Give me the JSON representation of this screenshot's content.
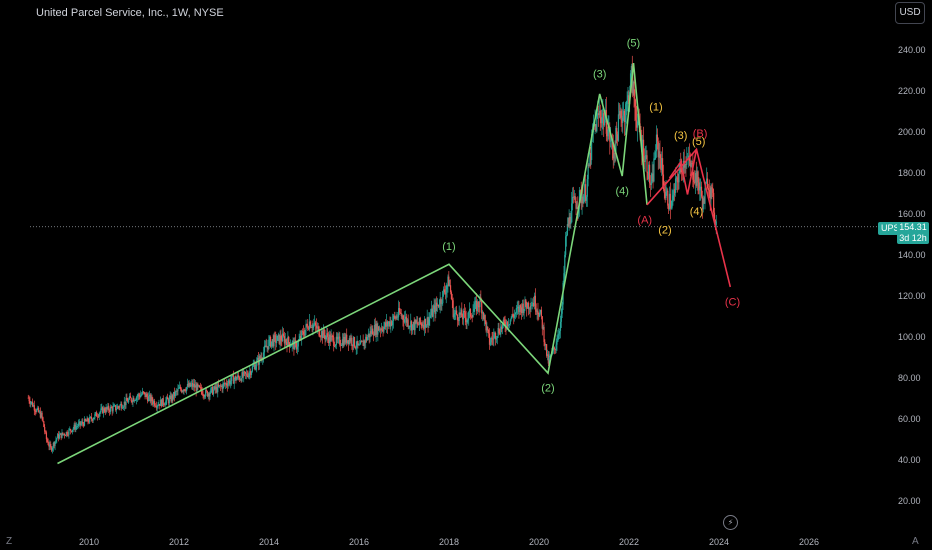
{
  "header": {
    "title": "United Parcel Service, Inc., 1W, NYSE",
    "currency_button": "USD"
  },
  "price_marker": {
    "ticker": "UPS",
    "price": "154.31",
    "countdown": "3d 12h"
  },
  "corner_labels": {
    "left": "Z",
    "right": "A"
  },
  "chart_data": {
    "type": "line",
    "title": "United Parcel Service, Inc., 1W, NYSE",
    "symbol": "UPS",
    "interval": "1W",
    "exchange": "NYSE",
    "ylim": [
      10,
      255
    ],
    "xlim": [
      2008.6,
      2027.8
    ],
    "y_ticks": [
      "20.00",
      "40.00",
      "60.00",
      "80.00",
      "100.00",
      "120.00",
      "140.00",
      "160.00",
      "180.00",
      "200.00",
      "220.00",
      "240.00"
    ],
    "y_tick_values": [
      20,
      40,
      60,
      80,
      100,
      120,
      140,
      160,
      180,
      200,
      220,
      240
    ],
    "x_ticks": [
      "2010",
      "2012",
      "2014",
      "2016",
      "2018",
      "2020",
      "2022",
      "2024",
      "2026"
    ],
    "x_tick_values": [
      2010,
      2012,
      2014,
      2016,
      2018,
      2020,
      2022,
      2024,
      2026
    ],
    "last_price": 154.31,
    "candles_series_name": "UPS",
    "price_path": [
      [
        2008.65,
        71
      ],
      [
        2008.8,
        66
      ],
      [
        2008.95,
        62
      ],
      [
        2009.05,
        51
      ],
      [
        2009.15,
        46
      ],
      [
        2009.3,
        52
      ],
      [
        2009.5,
        54
      ],
      [
        2009.7,
        57
      ],
      [
        2010.0,
        60
      ],
      [
        2010.3,
        65
      ],
      [
        2010.6,
        66
      ],
      [
        2010.9,
        70
      ],
      [
        2011.2,
        73
      ],
      [
        2011.5,
        68
      ],
      [
        2011.8,
        70
      ],
      [
        2012.0,
        75
      ],
      [
        2012.3,
        77
      ],
      [
        2012.6,
        73
      ],
      [
        2012.9,
        76
      ],
      [
        2013.2,
        80
      ],
      [
        2013.5,
        82
      ],
      [
        2013.8,
        90
      ],
      [
        2014.0,
        98
      ],
      [
        2014.3,
        100
      ],
      [
        2014.6,
        96
      ],
      [
        2014.9,
        108
      ],
      [
        2015.2,
        102
      ],
      [
        2015.5,
        98
      ],
      [
        2015.8,
        100
      ],
      [
        2016.0,
        95
      ],
      [
        2016.3,
        104
      ],
      [
        2016.6,
        106
      ],
      [
        2016.9,
        112
      ],
      [
        2017.2,
        106
      ],
      [
        2017.5,
        108
      ],
      [
        2017.8,
        118
      ],
      [
        2018.0,
        128
      ],
      [
        2018.1,
        112
      ],
      [
        2018.4,
        110
      ],
      [
        2018.7,
        118
      ],
      [
        2018.9,
        98
      ],
      [
        2019.1,
        104
      ],
      [
        2019.3,
        108
      ],
      [
        2019.6,
        115
      ],
      [
        2019.9,
        118
      ],
      [
        2020.05,
        110
      ],
      [
        2020.2,
        88
      ],
      [
        2020.35,
        95
      ],
      [
        2020.5,
        110
      ],
      [
        2020.6,
        150
      ],
      [
        2020.75,
        165
      ],
      [
        2020.9,
        168
      ],
      [
        2021.05,
        172
      ],
      [
        2021.2,
        200
      ],
      [
        2021.35,
        210
      ],
      [
        2021.5,
        205
      ],
      [
        2021.65,
        190
      ],
      [
        2021.8,
        208
      ],
      [
        2021.95,
        212
      ],
      [
        2022.05,
        228
      ],
      [
        2022.15,
        210
      ],
      [
        2022.25,
        198
      ],
      [
        2022.4,
        185
      ],
      [
        2022.5,
        172
      ],
      [
        2022.6,
        195
      ],
      [
        2022.7,
        188
      ],
      [
        2022.8,
        170
      ],
      [
        2022.95,
        165
      ],
      [
        2023.1,
        180
      ],
      [
        2023.25,
        188
      ],
      [
        2023.4,
        182
      ],
      [
        2023.55,
        175
      ],
      [
        2023.65,
        165
      ],
      [
        2023.75,
        178
      ],
      [
        2023.85,
        168
      ],
      [
        2023.95,
        154
      ]
    ],
    "wave_lines": [
      {
        "name": "primary",
        "color": "#7cd67a",
        "points": [
          [
            2009.3,
            39
          ],
          [
            2018.0,
            136
          ],
          [
            2020.2,
            83
          ],
          [
            2021.35,
            219
          ],
          [
            2021.85,
            179
          ],
          [
            2022.1,
            234
          ],
          [
            2022.4,
            165
          ]
        ]
      },
      {
        "name": "minor",
        "color": "#e8334a",
        "points": [
          [
            2022.4,
            165
          ],
          [
            2023.5,
            192
          ],
          [
            2024.25,
            125
          ]
        ]
      },
      {
        "name": "subwave",
        "color": "#e8334a",
        "points": [
          [
            2022.9,
            178
          ],
          [
            2023.15,
            186
          ],
          [
            2023.3,
            170
          ],
          [
            2023.5,
            192
          ]
        ]
      }
    ],
    "annotations": [
      {
        "text": "(1)",
        "x": 2018.0,
        "y": 143,
        "color": "#7cd67a"
      },
      {
        "text": "(2)",
        "x": 2020.2,
        "y": 74,
        "color": "#7cd67a"
      },
      {
        "text": "(3)",
        "x": 2021.35,
        "y": 227,
        "color": "#7cd67a"
      },
      {
        "text": "(4)",
        "x": 2021.85,
        "y": 170,
        "color": "#7cd67a"
      },
      {
        "text": "(5)",
        "x": 2022.1,
        "y": 242,
        "color": "#7cd67a"
      },
      {
        "text": "(1)",
        "x": 2022.6,
        "y": 211,
        "color": "#f5c542"
      },
      {
        "text": "(2)",
        "x": 2022.8,
        "y": 151,
        "color": "#f5c542"
      },
      {
        "text": "(3)",
        "x": 2023.15,
        "y": 197,
        "color": "#f5c542"
      },
      {
        "text": "(4)",
        "x": 2023.5,
        "y": 160,
        "color": "#f5c542"
      },
      {
        "text": "(5)",
        "x": 2023.55,
        "y": 194,
        "color": "#f5c542"
      },
      {
        "text": "(B)",
        "x": 2023.58,
        "y": 198,
        "color": "#e8334a"
      },
      {
        "text": "(A)",
        "x": 2022.35,
        "y": 156,
        "color": "#e8334a"
      },
      {
        "text": "(C)",
        "x": 2024.3,
        "y": 116,
        "color": "#e8334a"
      }
    ],
    "colors": {
      "up": "#26a69a",
      "down": "#ef5350",
      "background": "#000000",
      "axis_text": "#b2b5be"
    },
    "grid": false,
    "legend": "none"
  }
}
